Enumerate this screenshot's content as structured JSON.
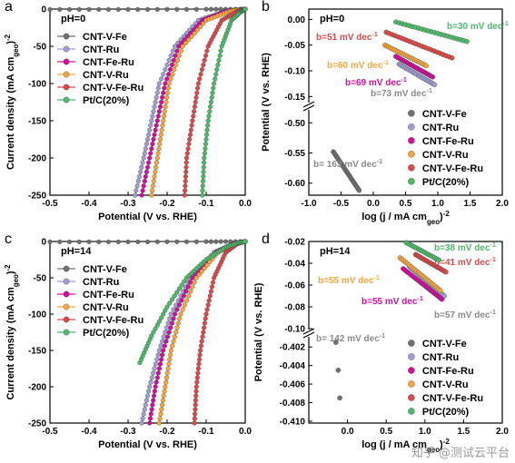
{
  "watermark": "知乎 @测试云平台",
  "colors": {
    "CNT-V-Fe": "#707070",
    "CNT-Ru": "#9d9fd0",
    "CNT-Fe-Ru": "#d0109a",
    "CNT-V-Ru": "#f4a640",
    "CNT-V-Fe-Ru": "#d94b4b",
    "Pt/C(20%)": "#4fb86b",
    "tafel-label-muted": "#8a8a8a"
  },
  "chart_data": [
    {
      "panel": "a",
      "type": "line",
      "annotation": "pH=0",
      "xlabel": "Potential  (V vs. RHE)",
      "ylabel": "Current density (mA cm",
      "ylabel_sub": "geo",
      "ylabel_end": ")",
      "ylabel_sup": "-2",
      "xlim": [
        -0.5,
        0.0
      ],
      "ylim": [
        -250,
        0
      ],
      "xticks": [
        "-0.5",
        "-0.4",
        "-0.3",
        "-0.2",
        "-0.1",
        "0.0"
      ],
      "yticks": [
        "0",
        "-50",
        "-100",
        "-150",
        "-200",
        "-250"
      ],
      "legend_position": "left",
      "series": [
        {
          "name": "CNT-V-Fe",
          "points": [
            [
              -0.5,
              -0.5
            ],
            [
              -0.3,
              -0.5
            ],
            [
              -0.1,
              -0.3
            ],
            [
              0.0,
              0
            ]
          ]
        },
        {
          "name": "CNT-Ru",
          "points": [
            [
              -0.282,
              -250
            ],
            [
              -0.26,
              -200
            ],
            [
              -0.24,
              -150
            ],
            [
              -0.22,
              -100
            ],
            [
              -0.18,
              -50
            ],
            [
              -0.12,
              -15
            ],
            [
              -0.05,
              -3
            ],
            [
              0.0,
              0
            ]
          ]
        },
        {
          "name": "CNT-Fe-Ru",
          "points": [
            [
              -0.265,
              -250
            ],
            [
              -0.245,
              -200
            ],
            [
              -0.225,
              -150
            ],
            [
              -0.205,
              -100
            ],
            [
              -0.17,
              -50
            ],
            [
              -0.11,
              -15
            ],
            [
              -0.05,
              -3
            ],
            [
              0.0,
              0
            ]
          ]
        },
        {
          "name": "CNT-V-Ru",
          "points": [
            [
              -0.24,
              -250
            ],
            [
              -0.225,
              -200
            ],
            [
              -0.21,
              -150
            ],
            [
              -0.195,
              -100
            ],
            [
              -0.16,
              -50
            ],
            [
              -0.1,
              -15
            ],
            [
              -0.04,
              -3
            ],
            [
              0.0,
              0
            ]
          ]
        },
        {
          "name": "CNT-V-Fe-Ru",
          "points": [
            [
              -0.155,
              -250
            ],
            [
              -0.15,
              -200
            ],
            [
              -0.135,
              -150
            ],
            [
              -0.12,
              -100
            ],
            [
              -0.095,
              -50
            ],
            [
              -0.06,
              -15
            ],
            [
              -0.02,
              -3
            ],
            [
              0.0,
              0
            ]
          ]
        },
        {
          "name": "Pt/C(20%)",
          "points": [
            [
              -0.11,
              -250
            ],
            [
              -0.105,
              -200
            ],
            [
              -0.095,
              -150
            ],
            [
              -0.08,
              -100
            ],
            [
              -0.06,
              -50
            ],
            [
              -0.035,
              -15
            ],
            [
              -0.01,
              -3
            ],
            [
              0.0,
              0
            ]
          ]
        }
      ]
    },
    {
      "panel": "b",
      "type": "scatter",
      "annotation": "pH=0",
      "xlabel": "log (j / mA cm",
      "xlabel_sub": "geo",
      "xlabel_end": ")",
      "xlabel_sup": "-2",
      "ylabel": "Potential  (V vs. RHE)",
      "xlim": [
        -1.0,
        2.0
      ],
      "ylim": [
        -0.62,
        0.02
      ],
      "xticks": [
        "-1.0",
        "-0.5",
        "0.0",
        "0.5",
        "1.0",
        "1.5",
        "2.0"
      ],
      "yticks": [
        "0.00",
        "-0.05",
        "-0.10",
        "-0.15",
        "-0.50",
        "-0.55",
        "-0.60"
      ],
      "legend_position": "right",
      "series": [
        {
          "name": "CNT-V-Fe",
          "slope": "b= 163 mV dec",
          "x": [
            -0.62,
            -0.22
          ],
          "y": [
            -0.548,
            -0.612
          ]
        },
        {
          "name": "CNT-Ru",
          "slope": "b=73 mV dec",
          "x": [
            0.4,
            0.95
          ],
          "y": [
            -0.087,
            -0.127
          ]
        },
        {
          "name": "CNT-Fe-Ru",
          "slope": "b=69 mV dec",
          "x": [
            0.35,
            0.92
          ],
          "y": [
            -0.072,
            -0.112
          ]
        },
        {
          "name": "CNT-V-Ru",
          "slope": "b=60 mV dec",
          "x": [
            0.18,
            0.82
          ],
          "y": [
            -0.05,
            -0.09
          ]
        },
        {
          "name": "CNT-V-Fe-Ru",
          "slope": "b=51 mV dec",
          "x": [
            0.2,
            1.22
          ],
          "y": [
            -0.025,
            -0.075
          ]
        },
        {
          "name": "Pt/C(20%)",
          "slope": "b=30 mV dec",
          "x": [
            0.35,
            1.45
          ],
          "y": [
            -0.005,
            -0.043
          ]
        }
      ]
    },
    {
      "panel": "c",
      "type": "line",
      "annotation": "pH=14",
      "xlabel": "Potential  (V vs. RHE)",
      "ylabel": "Current density (mA cm",
      "ylabel_sub": "geo",
      "ylabel_end": ")",
      "ylabel_sup": "-2",
      "xlim": [
        -0.5,
        0.0
      ],
      "ylim": [
        -250,
        0
      ],
      "xticks": [
        "-0.5",
        "-0.4",
        "-0.3",
        "-0.2",
        "-0.1",
        "0.0"
      ],
      "yticks": [
        "0",
        "-50",
        "-100",
        "-150",
        "-200",
        "-250"
      ],
      "legend_position": "left",
      "series": [
        {
          "name": "CNT-V-Fe",
          "points": [
            [
              -0.5,
              -0.5
            ],
            [
              -0.3,
              -0.5
            ],
            [
              -0.1,
              -0.3
            ],
            [
              0.0,
              0
            ]
          ]
        },
        {
          "name": "CNT-Ru",
          "points": [
            [
              -0.265,
              -250
            ],
            [
              -0.245,
              -200
            ],
            [
              -0.22,
              -150
            ],
            [
              -0.19,
              -100
            ],
            [
              -0.14,
              -50
            ],
            [
              -0.08,
              -15
            ],
            [
              -0.03,
              -3
            ],
            [
              0.0,
              0
            ]
          ]
        },
        {
          "name": "CNT-Fe-Ru",
          "points": [
            [
              -0.245,
              -250
            ],
            [
              -0.23,
              -200
            ],
            [
              -0.21,
              -150
            ],
            [
              -0.18,
              -100
            ],
            [
              -0.135,
              -50
            ],
            [
              -0.075,
              -15
            ],
            [
              -0.03,
              -3
            ],
            [
              0.0,
              0
            ]
          ]
        },
        {
          "name": "CNT-V-Ru",
          "points": [
            [
              -0.22,
              -250
            ],
            [
              -0.205,
              -200
            ],
            [
              -0.19,
              -150
            ],
            [
              -0.165,
              -100
            ],
            [
              -0.125,
              -50
            ],
            [
              -0.07,
              -15
            ],
            [
              -0.025,
              -3
            ],
            [
              0.0,
              0
            ]
          ]
        },
        {
          "name": "CNT-V-Fe-Ru",
          "points": [
            [
              -0.13,
              -250
            ],
            [
              -0.125,
              -200
            ],
            [
              -0.115,
              -150
            ],
            [
              -0.1,
              -100
            ],
            [
              -0.08,
              -50
            ],
            [
              -0.05,
              -15
            ],
            [
              -0.02,
              -3
            ],
            [
              0.0,
              0
            ]
          ]
        },
        {
          "name": "Pt/C(20%)",
          "points": [
            [
              -0.27,
              -167
            ],
            [
              -0.24,
              -130
            ],
            [
              -0.2,
              -90
            ],
            [
              -0.15,
              -50
            ],
            [
              -0.1,
              -25
            ],
            [
              -0.05,
              -8
            ],
            [
              -0.02,
              -2
            ],
            [
              0.0,
              0
            ]
          ]
        }
      ]
    },
    {
      "panel": "d",
      "type": "scatter",
      "annotation": "pH=14",
      "xlabel": "log (j / mA cm",
      "xlabel_sub": "geo",
      "xlabel_end": ")",
      "xlabel_sup": "-2",
      "ylabel": "Potential  (V vs. RHE)",
      "xlim": [
        -0.5,
        2.0
      ],
      "ylim": [
        -0.41,
        -0.02
      ],
      "xticks": [
        "0.0",
        "0.5",
        "1.0",
        "1.5",
        "2.0"
      ],
      "yticks": [
        "-0.02",
        "-0.04",
        "-0.06",
        "-0.08",
        "-0.10",
        "-0.402",
        "-0.404",
        "-0.406",
        "-0.408",
        "-0.410"
      ],
      "legend_position": "right",
      "series": [
        {
          "name": "CNT-V-Fe",
          "slope": "b= 142 mV dec",
          "x": [
            -0.15,
            -0.12,
            -0.1
          ],
          "y": [
            -0.4015,
            -0.4045,
            -0.4075
          ]
        },
        {
          "name": "CNT-Ru",
          "slope": "b=57 mV dec",
          "x": [
            0.8,
            1.25
          ],
          "y": [
            -0.043,
            -0.07
          ]
        },
        {
          "name": "CNT-Fe-Ru",
          "slope": "b=55 mV dec",
          "x": [
            0.72,
            1.22
          ],
          "y": [
            -0.045,
            -0.073
          ]
        },
        {
          "name": "CNT-V-Ru",
          "slope": "b=55 mV dec",
          "x": [
            0.68,
            1.2
          ],
          "y": [
            -0.035,
            -0.065
          ]
        },
        {
          "name": "CNT-V-Fe-Ru",
          "slope": "b=41 mV dec",
          "x": [
            0.88,
            1.27
          ],
          "y": [
            -0.032,
            -0.048
          ]
        },
        {
          "name": "Pt/C(20%)",
          "slope": "b=38 mV dec",
          "x": [
            0.6,
            1.18
          ],
          "y": [
            -0.015,
            -0.037
          ]
        }
      ]
    }
  ]
}
